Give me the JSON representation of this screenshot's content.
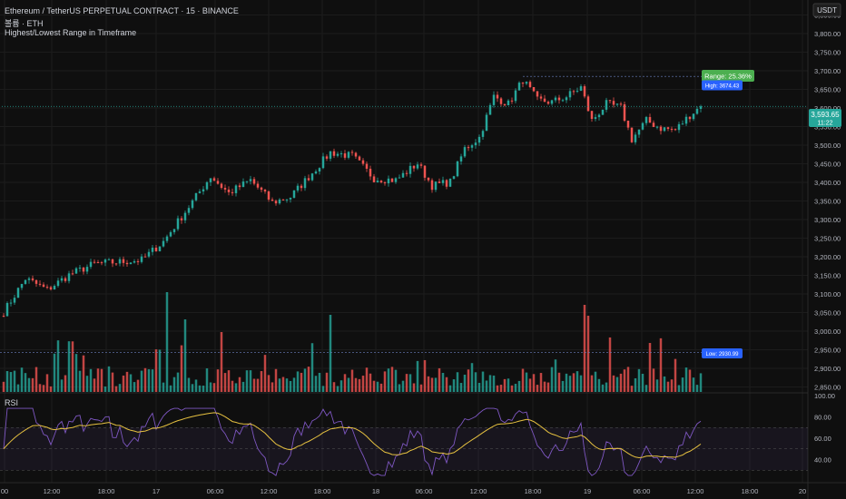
{
  "header": {
    "title": "Ethereum / TetherUS PERPETUAL CONTRACT · 15 · BINANCE",
    "volume_label": "볼륨 · ETH",
    "indicator_label": "Highest/Lowest Range in Timeframe",
    "currency": "USDT"
  },
  "price": {
    "current": "3,593.65",
    "countdown": "11:22",
    "high_label": "High: 3674.43",
    "low_label": "Low: 2930.99",
    "range_label": "Range: 25.36%"
  },
  "rsi": {
    "label": "RSI"
  },
  "colors": {
    "up": "#26a69a",
    "down": "#ef5350",
    "rsi_line": "#7e57c2",
    "rsi_ma": "#e6c140",
    "range_badge": "#4caf50",
    "high_low_badge": "#2962ff"
  },
  "price_axis": {
    "ticks": [
      "3,850.00",
      "3,800.00",
      "3,750.00",
      "3,700.00",
      "3,650.00",
      "3,600.00",
      "3,550.00",
      "3,500.00",
      "3,450.00",
      "3,400.00",
      "3,350.00",
      "3,300.00",
      "3,250.00",
      "3,200.00",
      "3,150.00",
      "3,100.00",
      "3,050.00",
      "3,000.00",
      "2,950.00",
      "2,900.00",
      "2,850.00"
    ]
  },
  "rsi_axis": {
    "ticks": [
      "100.00",
      "80.00",
      "60.00",
      "40.00"
    ]
  },
  "time_axis": {
    "ticks": [
      "00",
      "12:00",
      "18:00",
      "17",
      "06:00",
      "12:00",
      "18:00",
      "18",
      "06:00",
      "12:00",
      "18:00",
      "19",
      "06:00",
      "12:00",
      "18:00",
      "20"
    ]
  },
  "chart_data": {
    "type": "candlestick",
    "price_range": [
      2825,
      3875
    ],
    "rsi_range": [
      20,
      100
    ],
    "key_points": [
      {
        "i": 0,
        "p": 3040
      },
      {
        "i": 6,
        "p": 3130
      },
      {
        "i": 12,
        "p": 3100
      },
      {
        "i": 18,
        "p": 3140
      },
      {
        "i": 25,
        "p": 3170
      },
      {
        "i": 32,
        "p": 3175
      },
      {
        "i": 38,
        "p": 3180
      },
      {
        "i": 44,
        "p": 3230
      },
      {
        "i": 50,
        "p": 3310
      },
      {
        "i": 57,
        "p": 3405
      },
      {
        "i": 62,
        "p": 3360
      },
      {
        "i": 68,
        "p": 3395
      },
      {
        "i": 74,
        "p": 3335
      },
      {
        "i": 79,
        "p": 3350
      },
      {
        "i": 85,
        "p": 3415
      },
      {
        "i": 90,
        "p": 3470
      },
      {
        "i": 96,
        "p": 3460
      },
      {
        "i": 102,
        "p": 3400
      },
      {
        "i": 108,
        "p": 3395
      },
      {
        "i": 114,
        "p": 3440
      },
      {
        "i": 118,
        "p": 3380
      },
      {
        "i": 123,
        "p": 3390
      },
      {
        "i": 127,
        "p": 3480
      },
      {
        "i": 131,
        "p": 3510
      },
      {
        "i": 135,
        "p": 3620
      },
      {
        "i": 139,
        "p": 3600
      },
      {
        "i": 143,
        "p": 3665
      },
      {
        "i": 147,
        "p": 3610
      },
      {
        "i": 151,
        "p": 3605
      },
      {
        "i": 155,
        "p": 3620
      },
      {
        "i": 159,
        "p": 3645
      },
      {
        "i": 162,
        "p": 3555
      },
      {
        "i": 166,
        "p": 3600
      },
      {
        "i": 170,
        "p": 3590
      },
      {
        "i": 173,
        "p": 3505
      },
      {
        "i": 177,
        "p": 3555
      },
      {
        "i": 181,
        "p": 3535
      },
      {
        "i": 185,
        "p": 3530
      },
      {
        "i": 189,
        "p": 3570
      },
      {
        "i": 192,
        "p": 3594
      }
    ]
  }
}
